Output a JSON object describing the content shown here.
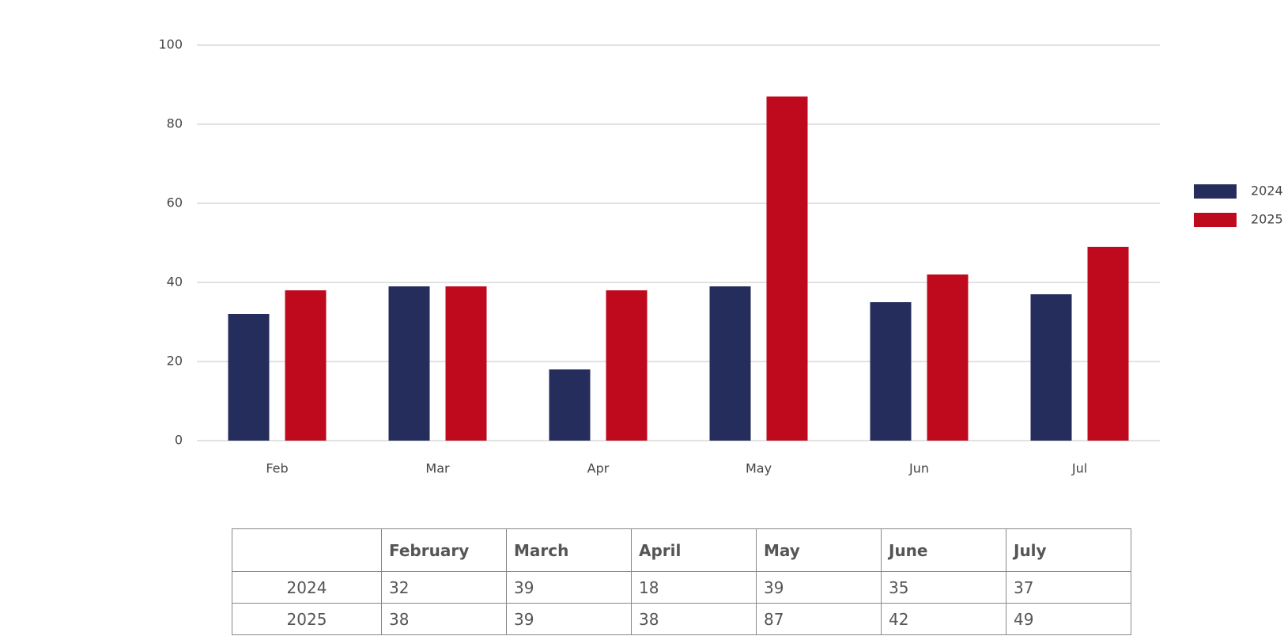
{
  "chart_data": {
    "type": "bar",
    "categories": [
      "Feb",
      "Mar",
      "Apr",
      "May",
      "Jun",
      "Jul"
    ],
    "series": [
      {
        "name": "2024",
        "color": "#252d5c",
        "values": [
          32,
          39,
          18,
          39,
          35,
          37
        ]
      },
      {
        "name": "2025",
        "color": "#bf0a1e",
        "values": [
          38,
          39,
          38,
          87,
          42,
          49
        ]
      }
    ],
    "ylim": [
      0,
      100
    ],
    "yticks": [
      0,
      20,
      40,
      60,
      80,
      100
    ],
    "grid": true,
    "legend": "right"
  },
  "table": {
    "columns": [
      "February",
      "March",
      "April",
      "May",
      "June",
      "July"
    ]
  }
}
